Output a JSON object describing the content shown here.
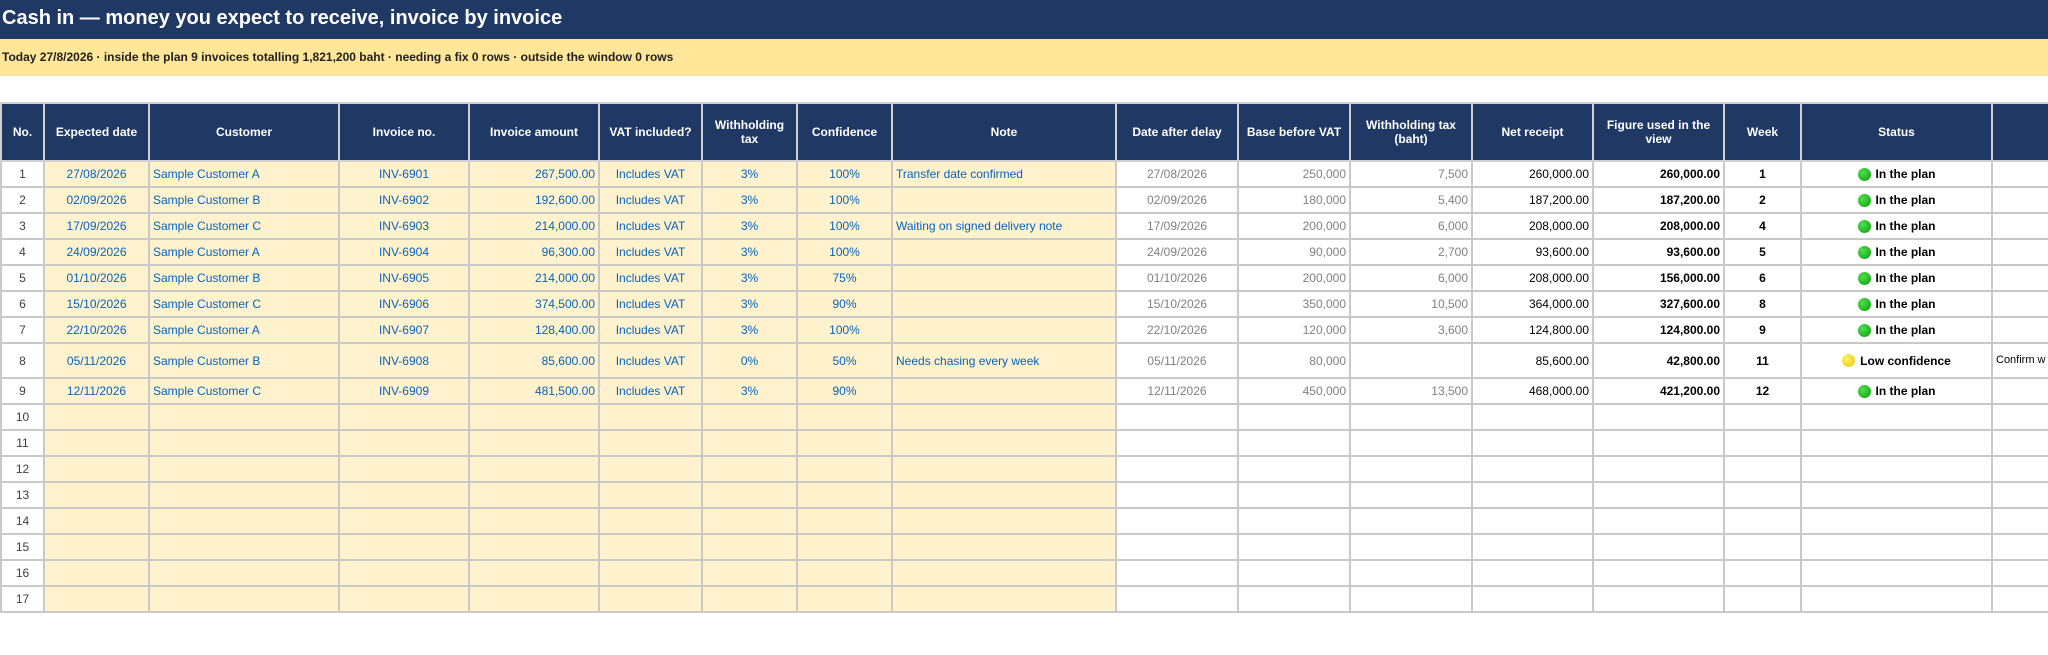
{
  "title": "Cash in — money you expect to receive, invoice by invoice",
  "summary": "Today 27/8/2026 · inside the plan 9 invoices totalling 1,821,200 baht · needing a fix 0 rows · outside the window 0 rows",
  "colors": {
    "header_bg": "#203864",
    "summary_bg": "#ffe699",
    "input_cell_bg": "#fff2cc",
    "input_text": "#0563c1",
    "status_green": "#0a9a0a",
    "status_yellow": "#f0c400"
  },
  "columns": [
    "No.",
    "Expected date",
    "Customer",
    "Invoice no.",
    "Invoice amount",
    "VAT included?",
    "Withholding tax",
    "Confidence",
    "Note",
    "Date after delay",
    "Base before VAT",
    "Withholding tax (baht)",
    "Net receipt",
    "Figure used in the view",
    "Week",
    "Status",
    ""
  ],
  "rows": [
    {
      "no": "1",
      "date": "27/08/2026",
      "customer": "Sample Customer A",
      "invoice": "INV-6901",
      "amount": "267,500.00",
      "vat": "Includes VAT",
      "wht": "3%",
      "confidence": "100%",
      "note": "Transfer date confirmed",
      "delay_date": "27/08/2026",
      "base": "250,000",
      "wht_baht": "7,500",
      "net": "260,000.00",
      "figure": "260,000.00",
      "week": "1",
      "status": "In the plan",
      "status_icon": "green",
      "extra": ""
    },
    {
      "no": "2",
      "date": "02/09/2026",
      "customer": "Sample Customer B",
      "invoice": "INV-6902",
      "amount": "192,600.00",
      "vat": "Includes VAT",
      "wht": "3%",
      "confidence": "100%",
      "note": "",
      "delay_date": "02/09/2026",
      "base": "180,000",
      "wht_baht": "5,400",
      "net": "187,200.00",
      "figure": "187,200.00",
      "week": "2",
      "status": "In the plan",
      "status_icon": "green",
      "extra": ""
    },
    {
      "no": "3",
      "date": "17/09/2026",
      "customer": "Sample Customer C",
      "invoice": "INV-6903",
      "amount": "214,000.00",
      "vat": "Includes VAT",
      "wht": "3%",
      "confidence": "100%",
      "note": "Waiting on signed delivery note",
      "delay_date": "17/09/2026",
      "base": "200,000",
      "wht_baht": "6,000",
      "net": "208,000.00",
      "figure": "208,000.00",
      "week": "4",
      "status": "In the plan",
      "status_icon": "green",
      "extra": ""
    },
    {
      "no": "4",
      "date": "24/09/2026",
      "customer": "Sample Customer A",
      "invoice": "INV-6904",
      "amount": "96,300.00",
      "vat": "Includes VAT",
      "wht": "3%",
      "confidence": "100%",
      "note": "",
      "delay_date": "24/09/2026",
      "base": "90,000",
      "wht_baht": "2,700",
      "net": "93,600.00",
      "figure": "93,600.00",
      "week": "5",
      "status": "In the plan",
      "status_icon": "green",
      "extra": ""
    },
    {
      "no": "5",
      "date": "01/10/2026",
      "customer": "Sample Customer B",
      "invoice": "INV-6905",
      "amount": "214,000.00",
      "vat": "Includes VAT",
      "wht": "3%",
      "confidence": "75%",
      "note": "",
      "delay_date": "01/10/2026",
      "base": "200,000",
      "wht_baht": "6,000",
      "net": "208,000.00",
      "figure": "156,000.00",
      "week": "6",
      "status": "In the plan",
      "status_icon": "green",
      "extra": ""
    },
    {
      "no": "6",
      "date": "15/10/2026",
      "customer": "Sample Customer C",
      "invoice": "INV-6906",
      "amount": "374,500.00",
      "vat": "Includes VAT",
      "wht": "3%",
      "confidence": "90%",
      "note": "",
      "delay_date": "15/10/2026",
      "base": "350,000",
      "wht_baht": "10,500",
      "net": "364,000.00",
      "figure": "327,600.00",
      "week": "8",
      "status": "In the plan",
      "status_icon": "green",
      "extra": ""
    },
    {
      "no": "7",
      "date": "22/10/2026",
      "customer": "Sample Customer A",
      "invoice": "INV-6907",
      "amount": "128,400.00",
      "vat": "Includes VAT",
      "wht": "3%",
      "confidence": "100%",
      "note": "",
      "delay_date": "22/10/2026",
      "base": "120,000",
      "wht_baht": "3,600",
      "net": "124,800.00",
      "figure": "124,800.00",
      "week": "9",
      "status": "In the plan",
      "status_icon": "green",
      "extra": ""
    },
    {
      "no": "8",
      "date": "05/11/2026",
      "customer": "Sample Customer B",
      "invoice": "INV-6908",
      "amount": "85,600.00",
      "vat": "Includes VAT",
      "wht": "0%",
      "confidence": "50%",
      "note": "Needs chasing every week",
      "delay_date": "05/11/2026",
      "base": "80,000",
      "wht_baht": "",
      "net": "85,600.00",
      "figure": "42,800.00",
      "week": "11",
      "status": "Low confidence",
      "status_icon": "yellow",
      "extra": "Confirm w best case",
      "tall": true
    },
    {
      "no": "9",
      "date": "12/11/2026",
      "customer": "Sample Customer C",
      "invoice": "INV-6909",
      "amount": "481,500.00",
      "vat": "Includes VAT",
      "wht": "3%",
      "confidence": "90%",
      "note": "",
      "delay_date": "12/11/2026",
      "base": "450,000",
      "wht_baht": "13,500",
      "net": "468,000.00",
      "figure": "421,200.00",
      "week": "12",
      "status": "In the plan",
      "status_icon": "green",
      "extra": ""
    },
    {
      "no": "10"
    },
    {
      "no": "11"
    },
    {
      "no": "12"
    },
    {
      "no": "13"
    },
    {
      "no": "14"
    },
    {
      "no": "15"
    },
    {
      "no": "16"
    },
    {
      "no": "17"
    }
  ]
}
